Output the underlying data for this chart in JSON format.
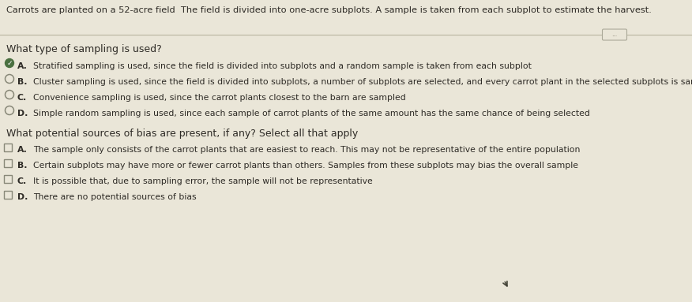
{
  "bg_color": "#eae6d8",
  "header_text": "Carrots are planted on a 52-acre field  The field is divided into one-acre subplots. A sample is taken from each subplot to estimate the harvest.",
  "divider_button_text": "...",
  "q1_label": "What type of sampling is used?",
  "q1_options_letter": [
    "A.",
    "B.",
    "C.",
    "D."
  ],
  "q1_options_text": [
    "Stratified sampling is used, since the field is divided into subplots and a random sample is taken from each subplot",
    "Cluster sampling is used, since the field is divided into subplots, a number of subplots are selected, and every carrot plant in the selected subplots is sampled",
    "Convenience sampling is used, since the carrot plants closest to the barn are sampled",
    "Simple random sampling is used, since each sample of carrot plants of the same amount has the same chance of being selected"
  ],
  "q1_selected": 0,
  "q2_label": "What potential sources of bias are present, if any? Select all that apply",
  "q2_options_letter": [
    "A.",
    "B.",
    "C.",
    "D."
  ],
  "q2_options_text": [
    "The sample only consists of the carrot plants that are easiest to reach. This may not be representative of the entire population",
    "Certain subplots may have more or fewer carrot plants than others. Samples from these subplots may bias the overall sample",
    "It is possible that, due to sampling error, the sample will not be representative",
    "There are no potential sources of bias"
  ],
  "q2_selected": [],
  "text_color": "#2e2b26",
  "option_fontsize": 7.8,
  "label_fontsize": 9.0,
  "header_fontsize": 8.2,
  "radio_checked_color": "#4a7040",
  "radio_unchecked_color": "#888878",
  "checkbox_border_color": "#888878",
  "divider_color": "#b8b4a0",
  "btn_border_color": "#aaa898",
  "btn_text_color": "#777060",
  "cursor_color": "#444438"
}
